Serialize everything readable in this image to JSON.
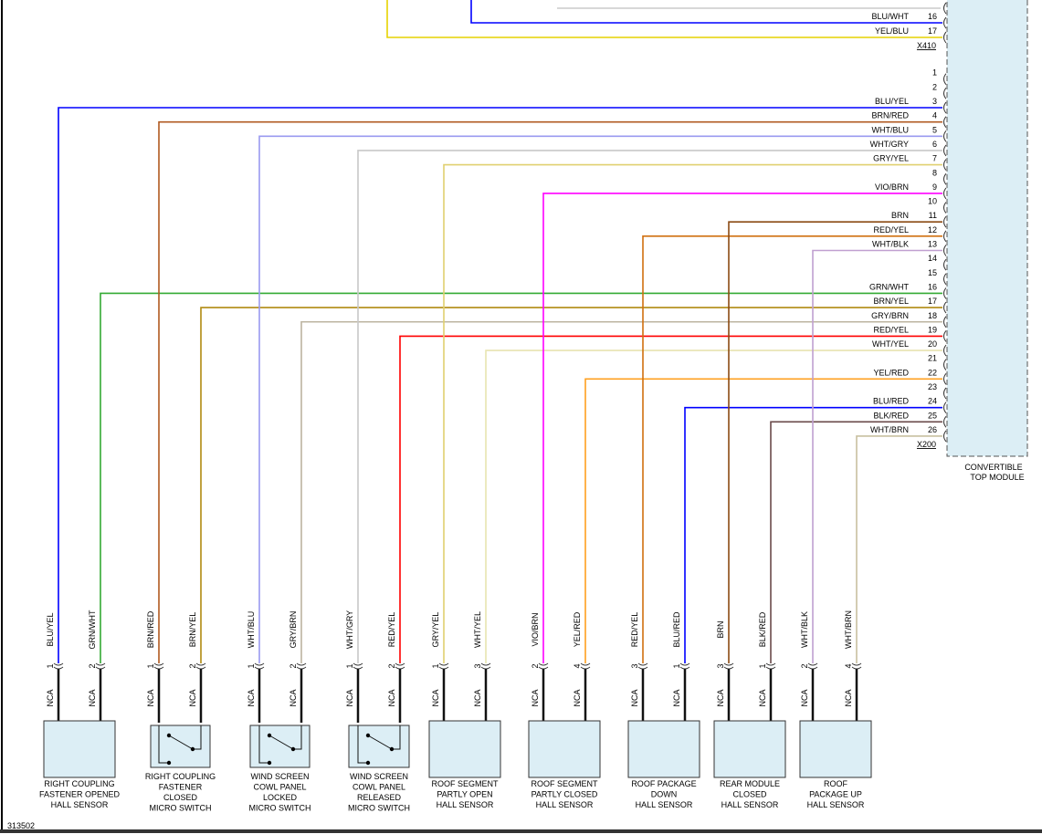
{
  "module": {
    "label_line1": "CONVERTIBLE",
    "label_line2": "TOP MODULE",
    "fill": "#dceef5",
    "connectors": [
      "X410",
      "X200"
    ]
  },
  "x410_wires": [
    {
      "pin": "16",
      "color_code": "BLU/WHT",
      "color": "#0000ff"
    },
    {
      "pin": "17",
      "color_code": "YEL/BLU",
      "color": "#e6d200"
    }
  ],
  "x200_unused_pins": [
    "1",
    "2",
    "8",
    "10",
    "14",
    "15",
    "21",
    "23"
  ],
  "wires": [
    {
      "pin": "3",
      "color_code": "BLU/YEL",
      "color": "#0000ff",
      "comp_pin": "1",
      "nca": "NCA"
    },
    {
      "pin": "16",
      "color_code": "GRN/WHT",
      "color": "#33aa33",
      "comp_pin": "2",
      "nca": "NCA"
    },
    {
      "pin": "4",
      "color_code": "BRN/RED",
      "color": "#b05a20",
      "comp_pin": "1",
      "nca": "NCA"
    },
    {
      "pin": "17",
      "color_code": "BRN/YEL",
      "color": "#b08a10",
      "comp_pin": "2",
      "nca": "NCA"
    },
    {
      "pin": "5",
      "color_code": "WHT/BLU",
      "color": "#9a9af0",
      "comp_pin": "1",
      "nca": "NCA"
    },
    {
      "pin": "18",
      "color_code": "GRY/BRN",
      "color": "#bcb4a0",
      "comp_pin": "2",
      "nca": "NCA"
    },
    {
      "pin": "6",
      "color_code": "WHT/GRY",
      "color": "#c8c8c8",
      "comp_pin": "1",
      "nca": "NCA"
    },
    {
      "pin": "19",
      "color_code": "RED/YEL",
      "color": "#ff0000",
      "comp_pin": "2",
      "nca": "NCA"
    },
    {
      "pin": "7",
      "color_code": "GRY/YEL",
      "color": "#e0d070",
      "comp_pin": "1",
      "nca": "NCA"
    },
    {
      "pin": "20",
      "color_code": "WHT/YEL",
      "color": "#e8e4b0",
      "comp_pin": "3",
      "nca": "NCA"
    },
    {
      "pin": "9",
      "color_code": "VIO/BRN",
      "color": "#ff00ff",
      "comp_pin": "2",
      "nca": "NCA"
    },
    {
      "pin": "22",
      "color_code": "YEL/RED",
      "color": "#ffa020",
      "comp_pin": "4",
      "nca": "NCA"
    },
    {
      "pin": "12",
      "color_code": "RED/YEL",
      "color": "#d07010",
      "comp_pin": "3",
      "nca": "NCA"
    },
    {
      "pin": "24",
      "color_code": "BLU/RED",
      "color": "#0000ff",
      "comp_pin": "1",
      "nca": "NCA"
    },
    {
      "pin": "11",
      "color_code": "BRN",
      "color": "#8b4a13",
      "comp_pin": "3",
      "nca": "NCA"
    },
    {
      "pin": "25",
      "color_code": "BLK/RED",
      "color": "#6a4a4a",
      "comp_pin": "1",
      "nca": "NCA"
    },
    {
      "pin": "13",
      "color_code": "WHT/BLK",
      "color": "#c0a0d0",
      "comp_pin": "2",
      "nca": "NCA"
    },
    {
      "pin": "26",
      "color_code": "WHT/BRN",
      "color": "#c8c0a0",
      "comp_pin": "4",
      "nca": "NCA"
    }
  ],
  "components": [
    {
      "type": "hall",
      "lines": [
        "RIGHT COUPLING",
        "FASTENER OPENED",
        "HALL SENSOR"
      ]
    },
    {
      "type": "switch",
      "lines": [
        "RIGHT COUPLING",
        "FASTENER",
        "CLOSED",
        "MICRO SWITCH"
      ]
    },
    {
      "type": "switch",
      "lines": [
        "WIND SCREEN",
        "COWL PANEL",
        "LOCKED",
        "MICRO SWITCH"
      ]
    },
    {
      "type": "switch",
      "lines": [
        "WIND SCREEN",
        "COWL PANEL",
        "RELEASED",
        "MICRO SWITCH"
      ]
    },
    {
      "type": "hall",
      "lines": [
        "ROOF SEGMENT",
        "PARTLY OPEN",
        "HALL SENSOR"
      ]
    },
    {
      "type": "hall",
      "lines": [
        "ROOF SEGMENT",
        "PARTLY CLOSED",
        "HALL SENSOR"
      ]
    },
    {
      "type": "hall",
      "lines": [
        "ROOF PACKAGE",
        "DOWN",
        "HALL SENSOR"
      ]
    },
    {
      "type": "hall",
      "lines": [
        "REAR MODULE",
        "CLOSED",
        "HALL SENSOR"
      ]
    },
    {
      "type": "hall",
      "lines": [
        "ROOF",
        "PACKAGE UP",
        "HALL SENSOR"
      ]
    }
  ],
  "figure_number": "313502"
}
